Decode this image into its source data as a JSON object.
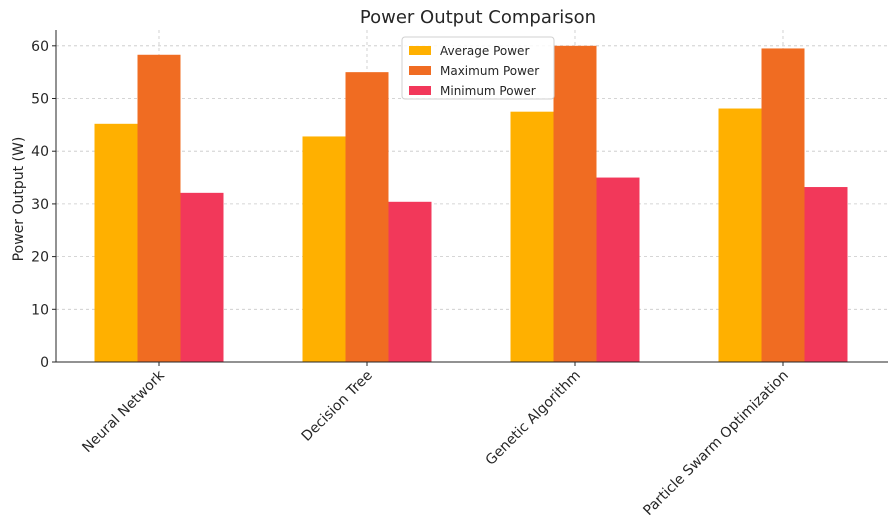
{
  "chart_data": {
    "type": "bar",
    "title": "Power Output Comparison",
    "xlabel": "",
    "ylabel": "Power Output (W)",
    "ylim": [
      0,
      63
    ],
    "yticks": [
      0,
      10,
      20,
      30,
      40,
      50,
      60
    ],
    "grid": true,
    "legend_position": "top-center",
    "categories": [
      "Neural Network",
      "Decision Tree",
      "Genetic Algorithm",
      "Particle Swarm Optimization"
    ],
    "series": [
      {
        "name": "Average Power",
        "color": "#ffb000",
        "values": [
          45.2,
          42.8,
          47.5,
          48.1
        ]
      },
      {
        "name": "Maximum Power",
        "color": "#f06c22",
        "values": [
          58.3,
          55.0,
          60.0,
          59.5
        ]
      },
      {
        "name": "Minimum Power",
        "color": "#f2385a",
        "values": [
          32.1,
          30.4,
          35.0,
          33.2
        ]
      }
    ]
  }
}
